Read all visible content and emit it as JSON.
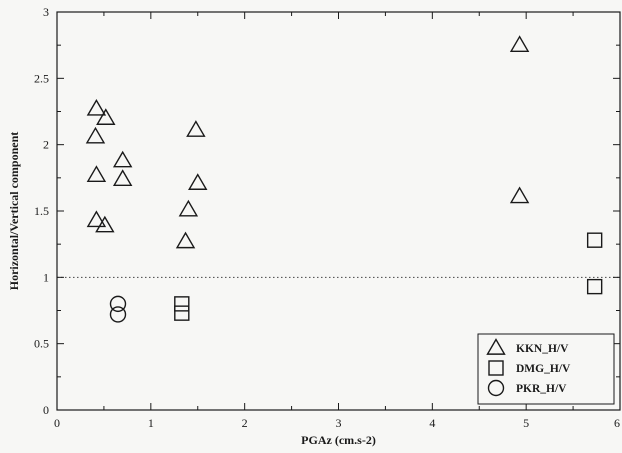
{
  "chart_data": {
    "type": "scatter",
    "xlabel": "PGAz (cm.s-2)",
    "ylabel": "Horizontal/Vertical component",
    "xlim": [
      0,
      6
    ],
    "ylim": [
      0,
      3
    ],
    "x_ticks": [
      "0",
      "1",
      "2",
      "3",
      "4",
      "5",
      "6"
    ],
    "y_ticks": [
      "0",
      "0.5",
      "1",
      "1.5",
      "2",
      "2.5",
      "3"
    ],
    "reference_line": {
      "y": 1,
      "style": "dotted"
    },
    "legend_position": "bottom-right",
    "series": [
      {
        "name": "KKN_H/V",
        "marker": "triangle",
        "points": [
          [
            0.42,
            2.27
          ],
          [
            0.52,
            2.2
          ],
          [
            0.41,
            2.06
          ],
          [
            0.7,
            1.88
          ],
          [
            0.42,
            1.77
          ],
          [
            0.7,
            1.74
          ],
          [
            0.42,
            1.43
          ],
          [
            0.51,
            1.39
          ],
          [
            1.48,
            2.11
          ],
          [
            1.5,
            1.71
          ],
          [
            1.4,
            1.51
          ],
          [
            1.37,
            1.27
          ],
          [
            4.93,
            2.75
          ],
          [
            4.93,
            1.61
          ]
        ]
      },
      {
        "name": "DMG_H/V",
        "marker": "square",
        "points": [
          [
            1.33,
            0.8
          ],
          [
            1.33,
            0.73
          ],
          [
            5.73,
            1.28
          ],
          [
            5.73,
            0.93
          ]
        ]
      },
      {
        "name": "PKR_H/V",
        "marker": "circle",
        "points": [
          [
            0.65,
            0.8
          ],
          [
            0.65,
            0.72
          ]
        ]
      }
    ]
  }
}
